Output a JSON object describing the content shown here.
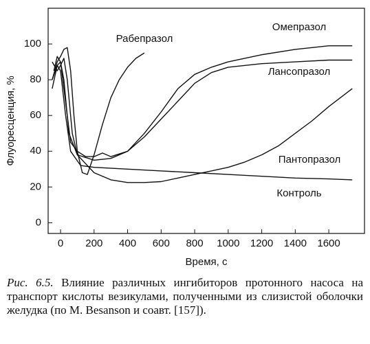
{
  "chart_data": {
    "type": "line",
    "xlabel": "Время, с",
    "ylabel": "Флуоресценция, %",
    "xlim": [
      -74,
      1813
    ],
    "ylim": [
      -6,
      120
    ],
    "xticks": [
      0,
      200,
      400,
      600,
      800,
      1000,
      1200,
      1400,
      1600
    ],
    "yticks": [
      0,
      20,
      40,
      60,
      80,
      100
    ],
    "series": [
      {
        "name": "Рабепразол",
        "color": "#111111",
        "x": [
          -50,
          -20,
          0,
          20,
          40,
          60,
          80,
          100,
          130,
          160,
          200,
          250,
          300,
          350,
          400,
          450,
          500
        ],
        "values": [
          80,
          90,
          93,
          97,
          98,
          85,
          60,
          40,
          28,
          27,
          38,
          55,
          70,
          80,
          87,
          92,
          95
        ]
      },
      {
        "name": "Омепразол",
        "color": "#111111",
        "x": [
          -50,
          -20,
          0,
          20,
          50,
          100,
          200,
          300,
          400,
          500,
          600,
          700,
          800,
          900,
          1000,
          1200,
          1400,
          1600,
          1740
        ],
        "values": [
          75,
          88,
          90,
          80,
          50,
          38,
          35,
          36,
          40,
          50,
          62,
          75,
          83,
          87,
          90,
          94,
          97,
          99,
          99
        ]
      },
      {
        "name": "Лансопразол",
        "color": "#111111",
        "x": [
          -40,
          -20,
          0,
          20,
          60,
          100,
          150,
          200,
          250,
          300,
          400,
          500,
          600,
          700,
          800,
          900,
          1000,
          1200,
          1400,
          1600,
          1740
        ],
        "values": [
          85,
          93,
          90,
          75,
          45,
          40,
          37,
          37,
          39,
          37,
          40,
          48,
          58,
          68,
          78,
          84,
          87,
          89,
          90,
          91,
          91
        ]
      },
      {
        "name": "Пантопразол",
        "color": "#111111",
        "x": [
          -50,
          -20,
          0,
          20,
          40,
          70,
          100,
          200,
          300,
          400,
          500,
          600,
          700,
          800,
          900,
          1000,
          1100,
          1200,
          1300,
          1400,
          1500,
          1600,
          1740
        ],
        "values": [
          90,
          85,
          88,
          92,
          80,
          50,
          38,
          28,
          24,
          22.5,
          22.5,
          23,
          25,
          27,
          29,
          31,
          34,
          38,
          43,
          50,
          57,
          65,
          75
        ]
      },
      {
        "name": "Контроль",
        "color": "#111111",
        "x": [
          -50,
          -20,
          0,
          30,
          60,
          120,
          200,
          400,
          600,
          800,
          1000,
          1200,
          1400,
          1600,
          1740
        ],
        "values": [
          80,
          88,
          85,
          60,
          40,
          32,
          31,
          30,
          29,
          28,
          27,
          26,
          25,
          24.5,
          24
        ]
      }
    ]
  },
  "caption": {
    "label": "Рис. 6.5.",
    "text": "Влияние различных ингибиторов протонного насоса на транспорт кислоты везикулами, полученными из слизистой оболочки желудка (по M. Besanson и соавт. [157])."
  }
}
